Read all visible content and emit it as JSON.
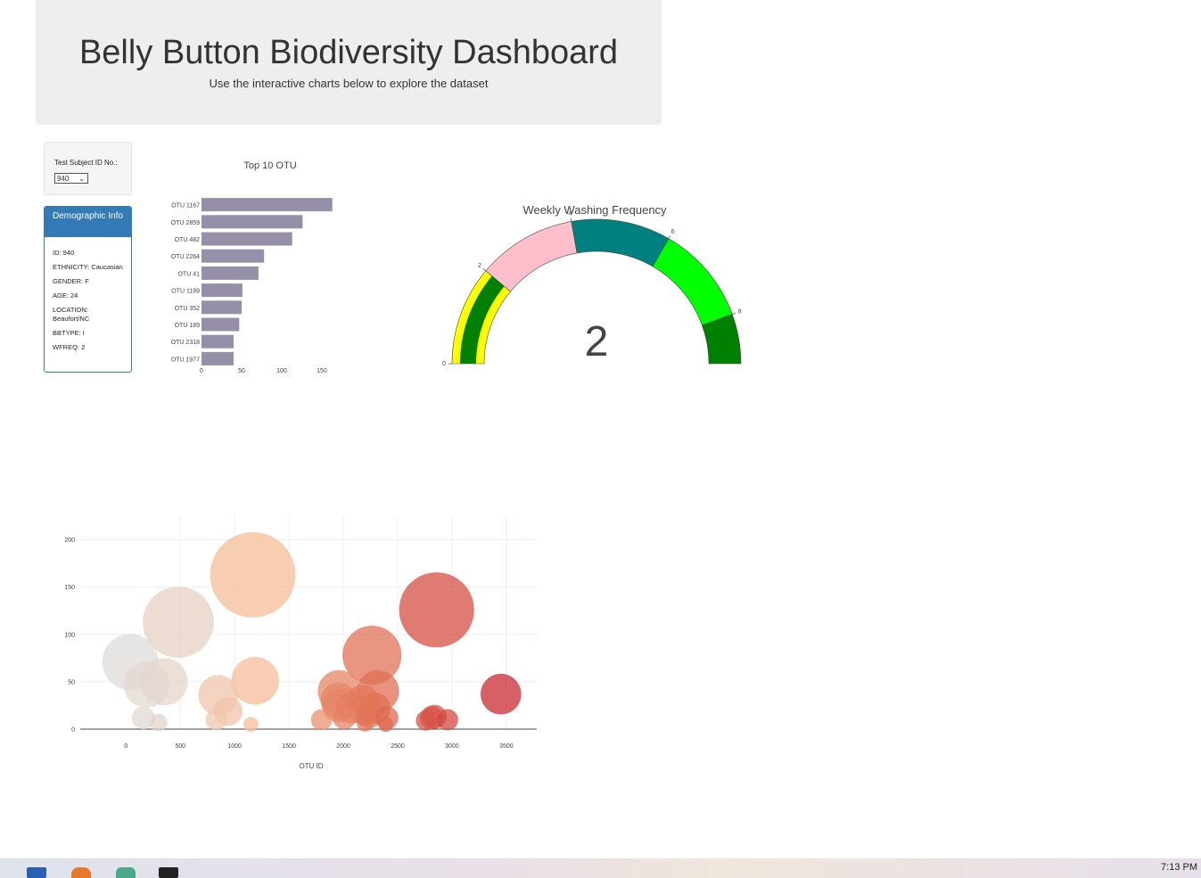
{
  "header": {
    "title": "Belly Button Biodiversity Dashboard",
    "subtitle": "Use the interactive charts below to explore the dataset"
  },
  "selector": {
    "label": "Test Subject ID No.:",
    "selected": "940"
  },
  "demographic": {
    "heading": "Demographic Info",
    "rows": [
      "ID: 940",
      "ETHNICITY: Caucasian",
      "GENDER: F",
      "AGE: 24",
      "LOCATION: Beaufort/NC",
      "BBTYPE: I",
      "WFREQ: 2"
    ]
  },
  "colors": {
    "bar": "#958fa8",
    "panel": "#337ab7",
    "gauge_bands": [
      "#ffff00",
      "#ffc0cb",
      "#008080",
      "#00ff00",
      "#008000"
    ],
    "gauge_value": "#008000"
  },
  "charts": {
    "bar": {
      "title": "Top 10 OTU",
      "categories": [
        "OTU 1167",
        "OTU 2859",
        "OTU 482",
        "OTU 2264",
        "OTU 41",
        "OTU 1189",
        "OTU 352",
        "OTU 189",
        "OTU 2318",
        "OTU 1977"
      ],
      "values": [
        163,
        126,
        113,
        78,
        71,
        51,
        50,
        47,
        40,
        40
      ],
      "xticks": [
        "0",
        "50",
        "100",
        "150"
      ],
      "xlim": [
        0,
        170
      ]
    },
    "gauge": {
      "title": "Weekly Washing Frequency",
      "value": "2",
      "value_num": 2,
      "range": [
        0,
        9
      ],
      "ticks": [
        "0",
        "2",
        "4",
        "6",
        "8"
      ],
      "band_edges": [
        0,
        2,
        4,
        6,
        8,
        9
      ]
    },
    "bubble": {
      "xlabel": "OTU ID",
      "xticks": [
        "0",
        "500",
        "1000",
        "1500",
        "2000",
        "2500",
        "3000",
        "3500"
      ],
      "yticks": [
        "0",
        "50",
        "100",
        "150",
        "200"
      ],
      "xlim": [
        -420,
        3780
      ],
      "ylim": [
        0,
        225
      ],
      "points": [
        {
          "x": 41,
          "y": 71
        },
        {
          "x": 189,
          "y": 47
        },
        {
          "x": 352,
          "y": 50
        },
        {
          "x": 482,
          "y": 113
        },
        {
          "x": 850,
          "y": 36
        },
        {
          "x": 940,
          "y": 19
        },
        {
          "x": 1167,
          "y": 163
        },
        {
          "x": 1189,
          "y": 51
        },
        {
          "x": 1960,
          "y": 40
        },
        {
          "x": 1960,
          "y": 30
        },
        {
          "x": 1960,
          "y": 25
        },
        {
          "x": 2080,
          "y": 23
        },
        {
          "x": 2180,
          "y": 28
        },
        {
          "x": 2190,
          "y": 20
        },
        {
          "x": 2264,
          "y": 78
        },
        {
          "x": 2290,
          "y": 22
        },
        {
          "x": 2318,
          "y": 40
        },
        {
          "x": 2859,
          "y": 126
        },
        {
          "x": 3450,
          "y": 37
        },
        {
          "x": 160,
          "y": 12
        },
        {
          "x": 300,
          "y": 7
        },
        {
          "x": 830,
          "y": 10
        },
        {
          "x": 1800,
          "y": 10
        },
        {
          "x": 2010,
          "y": 12
        },
        {
          "x": 2240,
          "y": 14
        },
        {
          "x": 2400,
          "y": 12
        },
        {
          "x": 2810,
          "y": 12
        },
        {
          "x": 2840,
          "y": 13
        },
        {
          "x": 2960,
          "y": 10
        },
        {
          "x": 2760,
          "y": 9
        },
        {
          "x": 2390,
          "y": 5
        },
        {
          "x": 1150,
          "y": 5
        },
        {
          "x": 2200,
          "y": 6
        }
      ]
    }
  },
  "taskbar": {
    "time": "7:13 PM"
  }
}
